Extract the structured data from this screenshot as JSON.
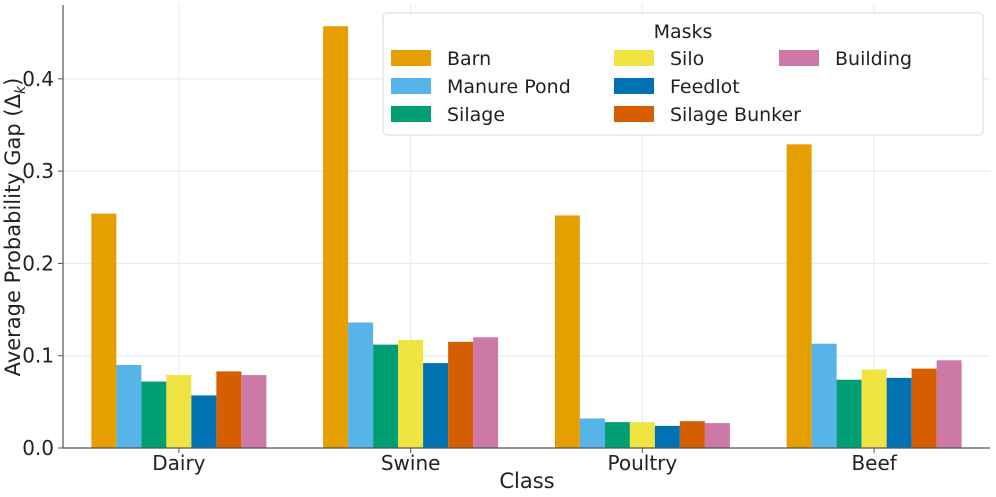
{
  "chart_data": {
    "type": "bar",
    "title": "",
    "xlabel": "Class",
    "ylabel": "Average Probability Gap (Δ",
    "ylabel_subscript": "k",
    "ylabel_suffix": ")",
    "ylim": [
      0,
      0.48
    ],
    "yticks": [
      0.0,
      0.1,
      0.2,
      0.3,
      0.4
    ],
    "ytick_labels": [
      "0.0",
      "0.1",
      "0.2",
      "0.3",
      "0.4"
    ],
    "grid": true,
    "legend": {
      "title": "Masks",
      "placement": "top-right",
      "columns": 3
    },
    "categories": [
      "Dairy",
      "Swine",
      "Poultry",
      "Beef"
    ],
    "series": [
      {
        "name": "Barn",
        "color": "#E69F00",
        "values": [
          0.254,
          0.457,
          0.252,
          0.329
        ]
      },
      {
        "name": "Manure Pond",
        "color": "#56B4E9",
        "values": [
          0.09,
          0.136,
          0.032,
          0.113
        ]
      },
      {
        "name": "Silage",
        "color": "#009E73",
        "values": [
          0.072,
          0.112,
          0.028,
          0.074
        ]
      },
      {
        "name": "Silo",
        "color": "#F0E442",
        "values": [
          0.079,
          0.117,
          0.028,
          0.085
        ]
      },
      {
        "name": "Feedlot",
        "color": "#0072B2",
        "values": [
          0.057,
          0.092,
          0.024,
          0.076
        ]
      },
      {
        "name": "Silage Bunker",
        "color": "#D55E00",
        "values": [
          0.083,
          0.115,
          0.029,
          0.086
        ]
      },
      {
        "name": "Building",
        "color": "#CC79A7",
        "values": [
          0.079,
          0.12,
          0.027,
          0.095
        ]
      }
    ]
  }
}
